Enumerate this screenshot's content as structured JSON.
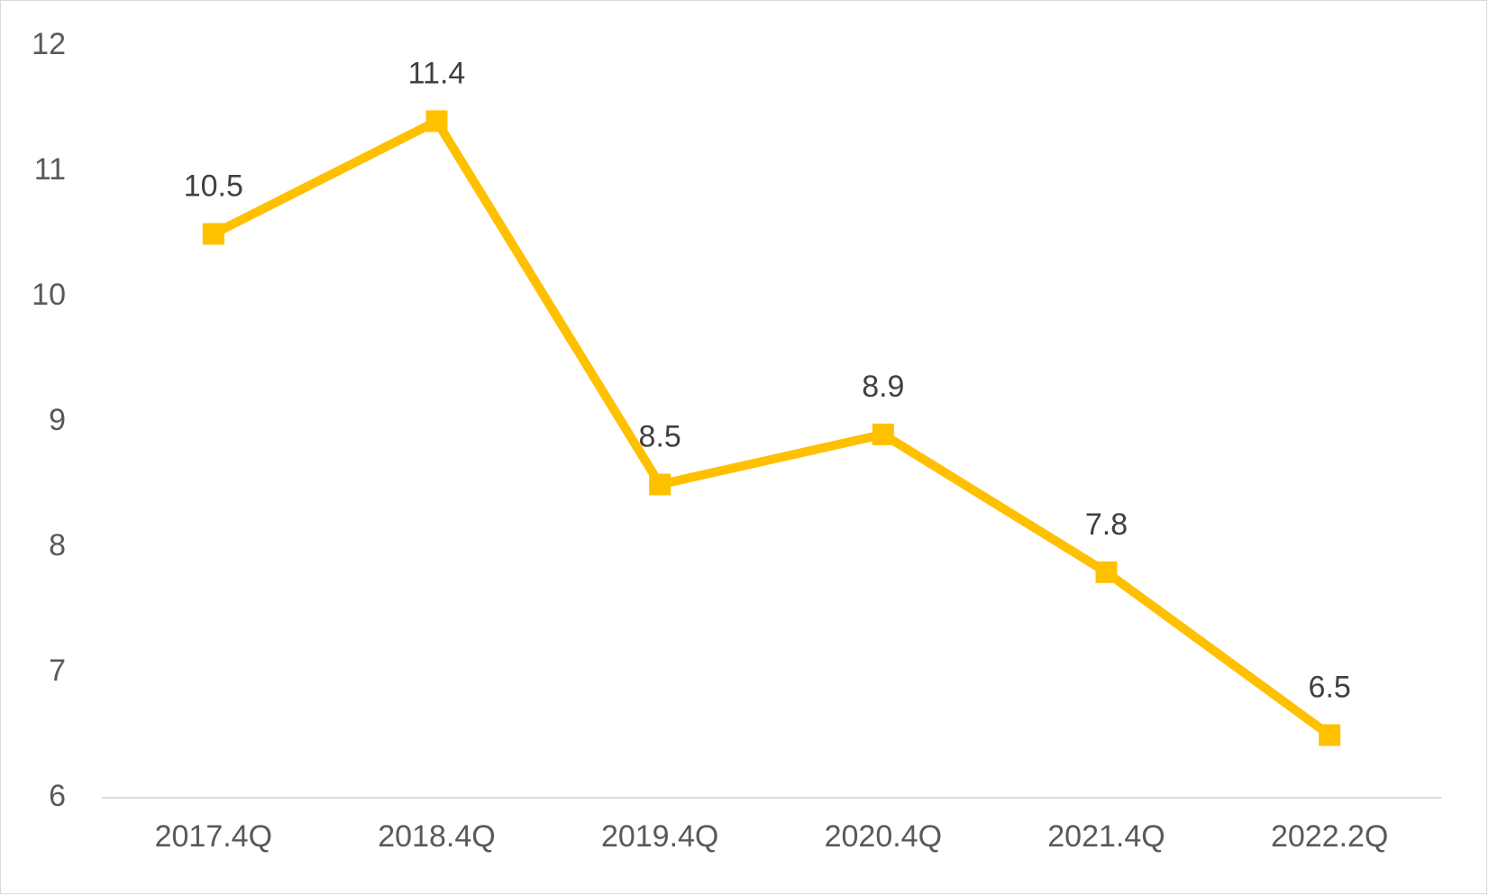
{
  "chart_data": {
    "type": "line",
    "title": "",
    "xlabel": "",
    "ylabel": "",
    "categories": [
      "2017.4Q",
      "2018.4Q",
      "2019.4Q",
      "2020.4Q",
      "2021.4Q",
      "2022.2Q"
    ],
    "series": [
      {
        "values": [
          10.5,
          11.4,
          8.5,
          8.9,
          7.8,
          6.5
        ],
        "color": "#FFC000",
        "marker": "square"
      }
    ],
    "ylim": [
      6,
      12
    ],
    "yticks": [
      6,
      7,
      8,
      9,
      10,
      11,
      12
    ],
    "data_labels": [
      "10.5",
      "11.4",
      "8.5",
      "8.9",
      "7.8",
      "6.5"
    ],
    "grid": false,
    "legend": "none"
  }
}
